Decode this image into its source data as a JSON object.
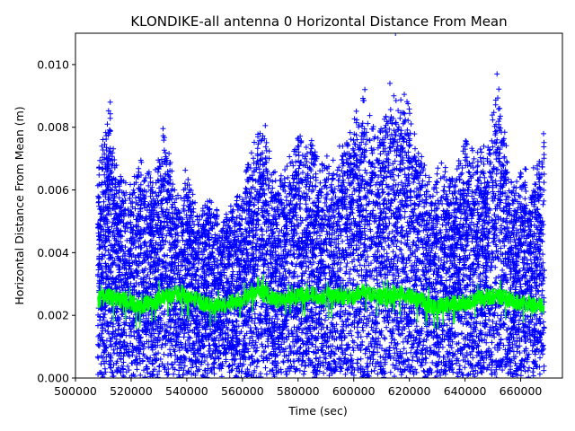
{
  "chart_data": {
    "type": "scatter",
    "title": "KLONDIKE-all antenna 0 Horizontal Distance From Mean",
    "xlabel": "Time (sec)",
    "ylabel": "Horizontal Distance From Mean (m)",
    "xlim": [
      500000,
      675000
    ],
    "ylim": [
      0,
      0.011
    ],
    "x_ticks": [
      500000,
      520000,
      540000,
      560000,
      580000,
      600000,
      620000,
      640000,
      660000
    ],
    "x_tick_labels": [
      "500000",
      "520000",
      "540000",
      "560000",
      "580000",
      "600000",
      "620000",
      "640000",
      "660000"
    ],
    "y_ticks": [
      0,
      0.002,
      0.004,
      0.006,
      0.008,
      0.01
    ],
    "y_tick_labels": [
      "0.000",
      "0.002",
      "0.004",
      "0.006",
      "0.008",
      "0.010"
    ],
    "grid": false,
    "legend": "none",
    "data_x_range": [
      508000,
      668500
    ],
    "series": [
      {
        "marker": "+",
        "color": "#0000ff",
        "style": "scatter",
        "envelope_x": [
          508000,
          512000,
          516000,
          520000,
          524000,
          528000,
          532000,
          536000,
          540000,
          544000,
          548000,
          552000,
          556000,
          560000,
          564000,
          568000,
          572000,
          576000,
          580000,
          584000,
          588000,
          592000,
          596000,
          600000,
          604000,
          608000,
          612000,
          616000,
          620000,
          624000,
          628000,
          632000,
          636000,
          640000,
          644000,
          648000,
          652000,
          656000,
          660000,
          664000,
          668500
        ],
        "envelope_y": [
          0.0068,
          0.0088,
          0.0065,
          0.0062,
          0.0072,
          0.0063,
          0.0083,
          0.0058,
          0.0068,
          0.0052,
          0.0058,
          0.0052,
          0.0055,
          0.0062,
          0.0075,
          0.0083,
          0.0065,
          0.0068,
          0.0081,
          0.0078,
          0.007,
          0.0072,
          0.0075,
          0.0085,
          0.0092,
          0.008,
          0.0085,
          0.0094,
          0.0088,
          0.0072,
          0.0065,
          0.007,
          0.0065,
          0.0076,
          0.0072,
          0.0075,
          0.0097,
          0.0065,
          0.0068,
          0.0066,
          0.0079
        ],
        "outliers": [
          [
            615000,
            0.011
          ],
          [
            613000,
            0.0094
          ],
          [
            651500,
            0.0097
          ],
          [
            604000,
            0.0092
          ],
          [
            512500,
            0.0088
          ]
        ]
      },
      {
        "marker": "line",
        "color": "#00ff00",
        "style": "line",
        "x": [
          508000,
          512000,
          516000,
          520000,
          524000,
          528000,
          532000,
          536000,
          540000,
          544000,
          548000,
          552000,
          556000,
          560000,
          564000,
          568000,
          572000,
          576000,
          580000,
          584000,
          588000,
          592000,
          596000,
          600000,
          604000,
          608000,
          612000,
          616000,
          620000,
          624000,
          628000,
          632000,
          636000,
          640000,
          644000,
          648000,
          652000,
          656000,
          660000,
          664000,
          668500
        ],
        "y": [
          0.0025,
          0.0026,
          0.0025,
          0.0024,
          0.0023,
          0.0024,
          0.0026,
          0.0027,
          0.0026,
          0.0025,
          0.0023,
          0.0023,
          0.0024,
          0.0025,
          0.0027,
          0.0027,
          0.0025,
          0.0025,
          0.0026,
          0.0027,
          0.0026,
          0.0027,
          0.0026,
          0.0026,
          0.0028,
          0.0026,
          0.0026,
          0.0027,
          0.0026,
          0.0025,
          0.0023,
          0.0023,
          0.0024,
          0.0024,
          0.0025,
          0.0026,
          0.0026,
          0.0025,
          0.0024,
          0.0023,
          0.0023
        ]
      }
    ]
  }
}
